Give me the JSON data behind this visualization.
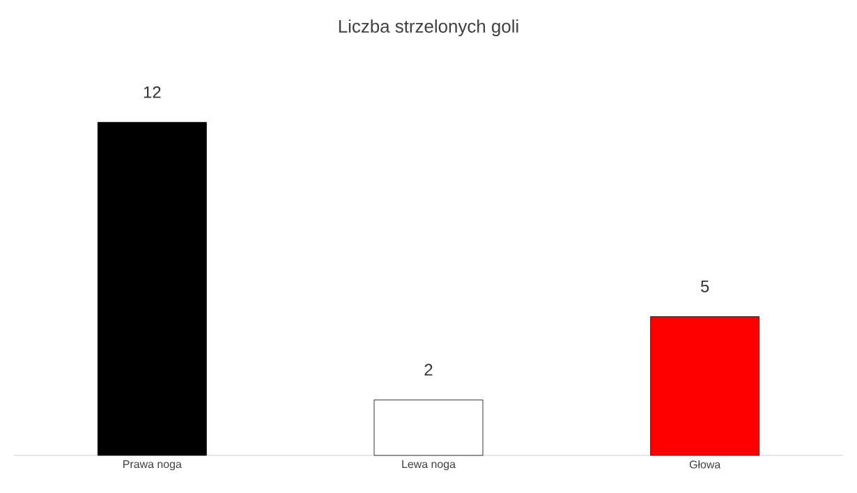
{
  "chart_data": {
    "type": "bar",
    "title": "Liczba strzelonych goli",
    "categories": [
      "Prawa noga",
      "Lewa noga",
      "Głowa"
    ],
    "values": [
      12,
      2,
      5
    ],
    "colors": [
      "#000000",
      "#ffffff",
      "#ff0000"
    ],
    "data_labels": true
  }
}
